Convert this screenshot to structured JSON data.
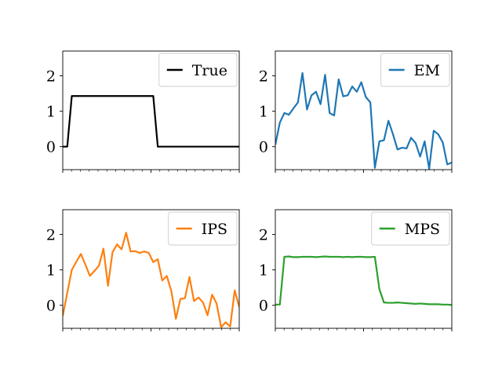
{
  "chart_data": [
    {
      "type": "line",
      "legend_position": "upper-right",
      "grid": false,
      "x": [
        0,
        1,
        2,
        3,
        4,
        5,
        6,
        7,
        8,
        9,
        10,
        11,
        12,
        13,
        14,
        15,
        16,
        17,
        18,
        19,
        20,
        21,
        22,
        23,
        24,
        25,
        26,
        27,
        28,
        29,
        30,
        31,
        32,
        33,
        34,
        35,
        36,
        37,
        38,
        39
      ],
      "xlim": [
        0,
        39
      ],
      "ylim": [
        -0.65,
        2.7
      ],
      "yticks": [
        0,
        1,
        2
      ],
      "ytick_labels": [
        "0",
        "1",
        "2"
      ],
      "series": [
        {
          "name": "True",
          "color": "#000000",
          "values": [
            0,
            0,
            1.43,
            1.43,
            1.43,
            1.43,
            1.43,
            1.43,
            1.43,
            1.43,
            1.43,
            1.43,
            1.43,
            1.43,
            1.43,
            1.43,
            1.43,
            1.43,
            1.43,
            1.43,
            1.43,
            0,
            0,
            0,
            0,
            0,
            0,
            0,
            0,
            0,
            0,
            0,
            0,
            0,
            0,
            0,
            0,
            0,
            0,
            0
          ]
        }
      ]
    },
    {
      "type": "line",
      "legend_position": "upper-right",
      "grid": false,
      "x": [
        0,
        1,
        2,
        3,
        4,
        5,
        6,
        7,
        8,
        9,
        10,
        11,
        12,
        13,
        14,
        15,
        16,
        17,
        18,
        19,
        20,
        21,
        22,
        23,
        24,
        25,
        26,
        27,
        28,
        29,
        30,
        31,
        32,
        33,
        34,
        35,
        36,
        37,
        38,
        39
      ],
      "xlim": [
        0,
        39
      ],
      "ylim": [
        -0.65,
        2.7
      ],
      "yticks": [
        0,
        1,
        2
      ],
      "ytick_labels": [
        "0",
        "1",
        "2"
      ],
      "series": [
        {
          "name": "EM",
          "color": "#1f77b4",
          "values": [
            0.05,
            0.68,
            0.95,
            0.9,
            1.08,
            1.25,
            2.08,
            1.05,
            1.45,
            1.55,
            1.2,
            2.03,
            0.95,
            0.88,
            1.9,
            1.42,
            1.45,
            1.7,
            1.55,
            1.82,
            1.4,
            1.25,
            -0.6,
            0.15,
            0.18,
            0.73,
            0.35,
            -0.08,
            -0.03,
            -0.05,
            0.25,
            0.1,
            -0.28,
            0.15,
            -0.63,
            0.45,
            0.35,
            0.12,
            -0.5,
            -0.45
          ]
        }
      ]
    },
    {
      "type": "line",
      "legend_position": "upper-right",
      "grid": false,
      "x": [
        0,
        1,
        2,
        3,
        4,
        5,
        6,
        7,
        8,
        9,
        10,
        11,
        12,
        13,
        14,
        15,
        16,
        17,
        18,
        19,
        20,
        21,
        22,
        23,
        24,
        25,
        26,
        27,
        28,
        29,
        30,
        31,
        32,
        33,
        34,
        35,
        36,
        37,
        38,
        39
      ],
      "xlim": [
        0,
        39
      ],
      "ylim": [
        -0.65,
        2.7
      ],
      "yticks": [
        0,
        1,
        2
      ],
      "ytick_labels": [
        "0",
        "1",
        "2"
      ],
      "series": [
        {
          "name": "IPS",
          "color": "#ff7f0e",
          "values": [
            -0.3,
            0.35,
            1.0,
            1.23,
            1.45,
            1.15,
            0.83,
            0.97,
            1.12,
            1.6,
            0.55,
            1.5,
            1.72,
            1.58,
            2.05,
            1.52,
            1.53,
            1.48,
            1.52,
            1.48,
            1.22,
            1.3,
            0.7,
            0.83,
            0.4,
            -0.38,
            0.18,
            0.2,
            0.8,
            0.12,
            0.22,
            0.08,
            -0.28,
            0.3,
            0.05,
            -0.62,
            -0.48,
            -0.6,
            0.42,
            -0.05
          ]
        }
      ]
    },
    {
      "type": "line",
      "legend_position": "upper-right",
      "grid": false,
      "x": [
        0,
        1,
        2,
        3,
        4,
        5,
        6,
        7,
        8,
        9,
        10,
        11,
        12,
        13,
        14,
        15,
        16,
        17,
        18,
        19,
        20,
        21,
        22,
        23,
        24,
        25,
        26,
        27,
        28,
        29,
        30,
        31,
        32,
        33,
        34,
        35,
        36,
        37,
        38,
        39
      ],
      "xlim": [
        0,
        39
      ],
      "ylim": [
        -0.65,
        2.7
      ],
      "yticks": [
        0,
        1,
        2
      ],
      "ytick_labels": [
        "0",
        "1",
        "2"
      ],
      "series": [
        {
          "name": "MPS",
          "color": "#2ca02c",
          "values": [
            0.02,
            0.02,
            1.37,
            1.38,
            1.36,
            1.36,
            1.37,
            1.37,
            1.37,
            1.36,
            1.37,
            1.38,
            1.37,
            1.37,
            1.37,
            1.36,
            1.37,
            1.36,
            1.37,
            1.37,
            1.36,
            1.36,
            1.37,
            0.45,
            0.08,
            0.07,
            0.07,
            0.08,
            0.07,
            0.06,
            0.05,
            0.04,
            0.05,
            0.04,
            0.03,
            0.03,
            0.03,
            0.02,
            0.02,
            0.01
          ]
        }
      ]
    }
  ]
}
